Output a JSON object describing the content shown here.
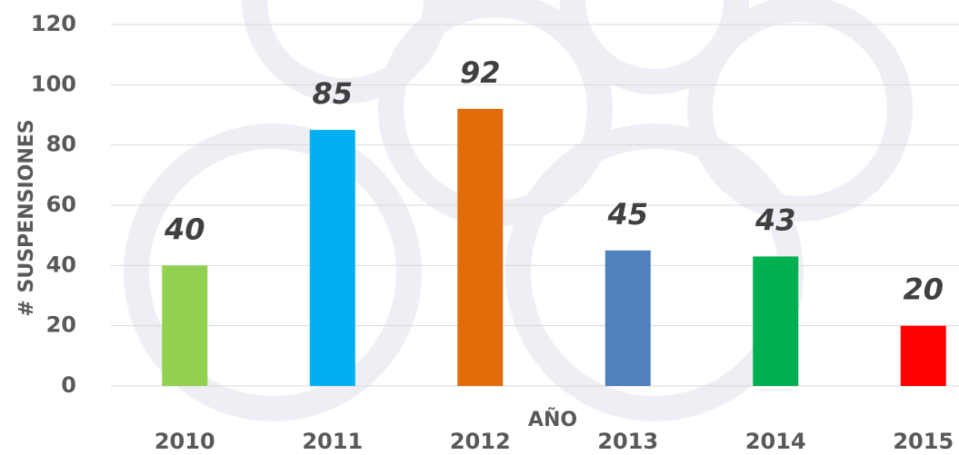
{
  "chart_data": {
    "type": "bar",
    "x_label": "AÑO",
    "y_label": "# SUSPENSIONES",
    "categories": [
      "2010",
      "2011",
      "2012",
      "2013",
      "2014",
      "2015"
    ],
    "values": [
      40,
      85,
      92,
      45,
      43,
      20
    ],
    "colors": [
      "#92d050",
      "#00b0f0",
      "#e36c0a",
      "#4f81bd",
      "#00b050",
      "#ff0000"
    ],
    "ylim": [
      0,
      120
    ],
    "yticks": [
      0,
      20,
      40,
      60,
      80,
      100,
      120
    ],
    "grid": true
  }
}
